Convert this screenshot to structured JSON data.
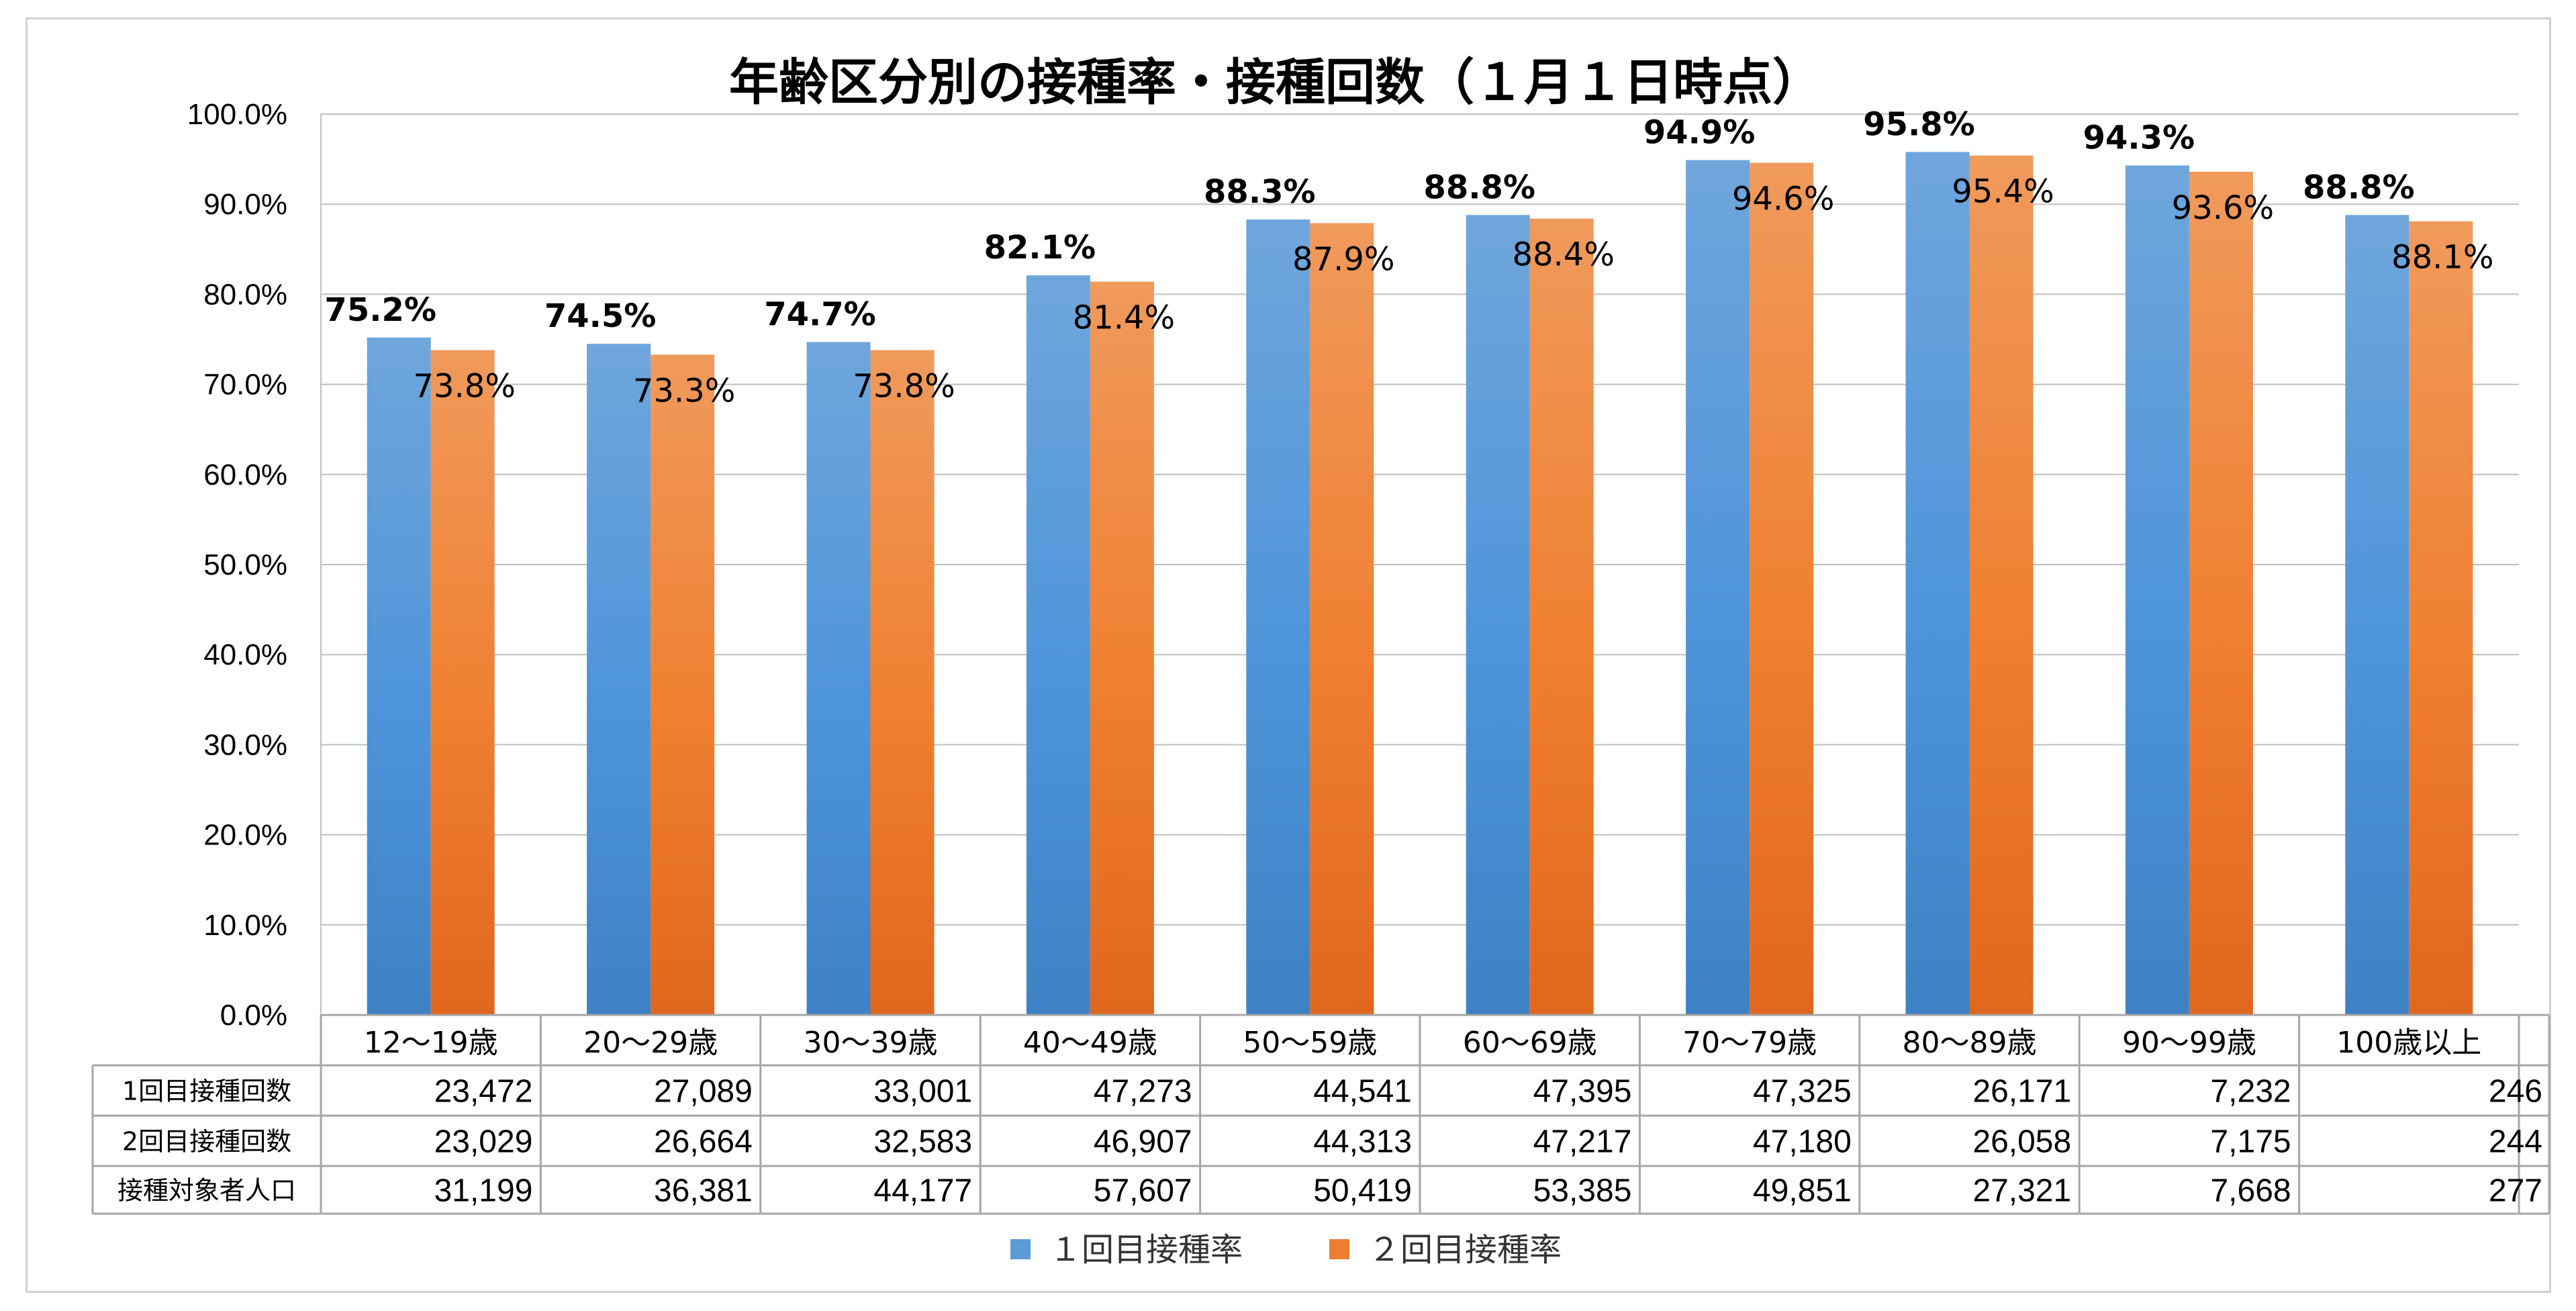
{
  "chart_data": {
    "type": "bar",
    "title": "年齢区分別の接種率・接種回数（１月１日時点）",
    "categories": [
      "12～19歳",
      "20～29歳",
      "30～39歳",
      "40～49歳",
      "50～59歳",
      "60～69歳",
      "70～79歳",
      "80～89歳",
      "90～99歳",
      "100歳以上"
    ],
    "ylim": [
      0,
      100
    ],
    "yticks": [
      "0.0%",
      "10.0%",
      "20.0%",
      "30.0%",
      "40.0%",
      "50.0%",
      "60.0%",
      "70.0%",
      "80.0%",
      "90.0%",
      "100.0%"
    ],
    "grid": true,
    "legend_position": "bottom",
    "series": [
      {
        "name": "１回目接種率",
        "color": "#5B9BD5",
        "values": [
          75.2,
          74.5,
          74.7,
          82.1,
          88.3,
          88.8,
          94.9,
          95.8,
          94.3,
          88.8
        ],
        "labels": [
          "75.2%",
          "74.5%",
          "74.7%",
          "82.1%",
          "88.3%",
          "88.8%",
          "94.9%",
          "95.8%",
          "94.3%",
          "88.8%"
        ]
      },
      {
        "name": "２回目接種率",
        "color": "#ED7D31",
        "values": [
          73.8,
          73.3,
          73.8,
          81.4,
          87.9,
          88.4,
          94.6,
          95.4,
          93.6,
          88.1
        ],
        "labels": [
          "73.8%",
          "73.3%",
          "73.8%",
          "81.4%",
          "87.9%",
          "88.4%",
          "94.6%",
          "95.4%",
          "93.6%",
          "88.1%"
        ]
      }
    ],
    "table": {
      "rows": [
        {
          "header": "1回目接種回数",
          "values": [
            "23,472",
            "27,089",
            "33,001",
            "47,273",
            "44,541",
            "47,395",
            "47,325",
            "26,171",
            "7,232",
            "246"
          ]
        },
        {
          "header": "2回目接種回数",
          "values": [
            "23,029",
            "26,664",
            "32,583",
            "46,907",
            "44,313",
            "47,217",
            "47,180",
            "26,058",
            "7,175",
            "244"
          ]
        },
        {
          "header": "接種対象者人口",
          "values": [
            "31,199",
            "36,381",
            "44,177",
            "57,607",
            "50,419",
            "53,385",
            "49,851",
            "27,321",
            "7,668",
            "277"
          ]
        }
      ]
    }
  }
}
